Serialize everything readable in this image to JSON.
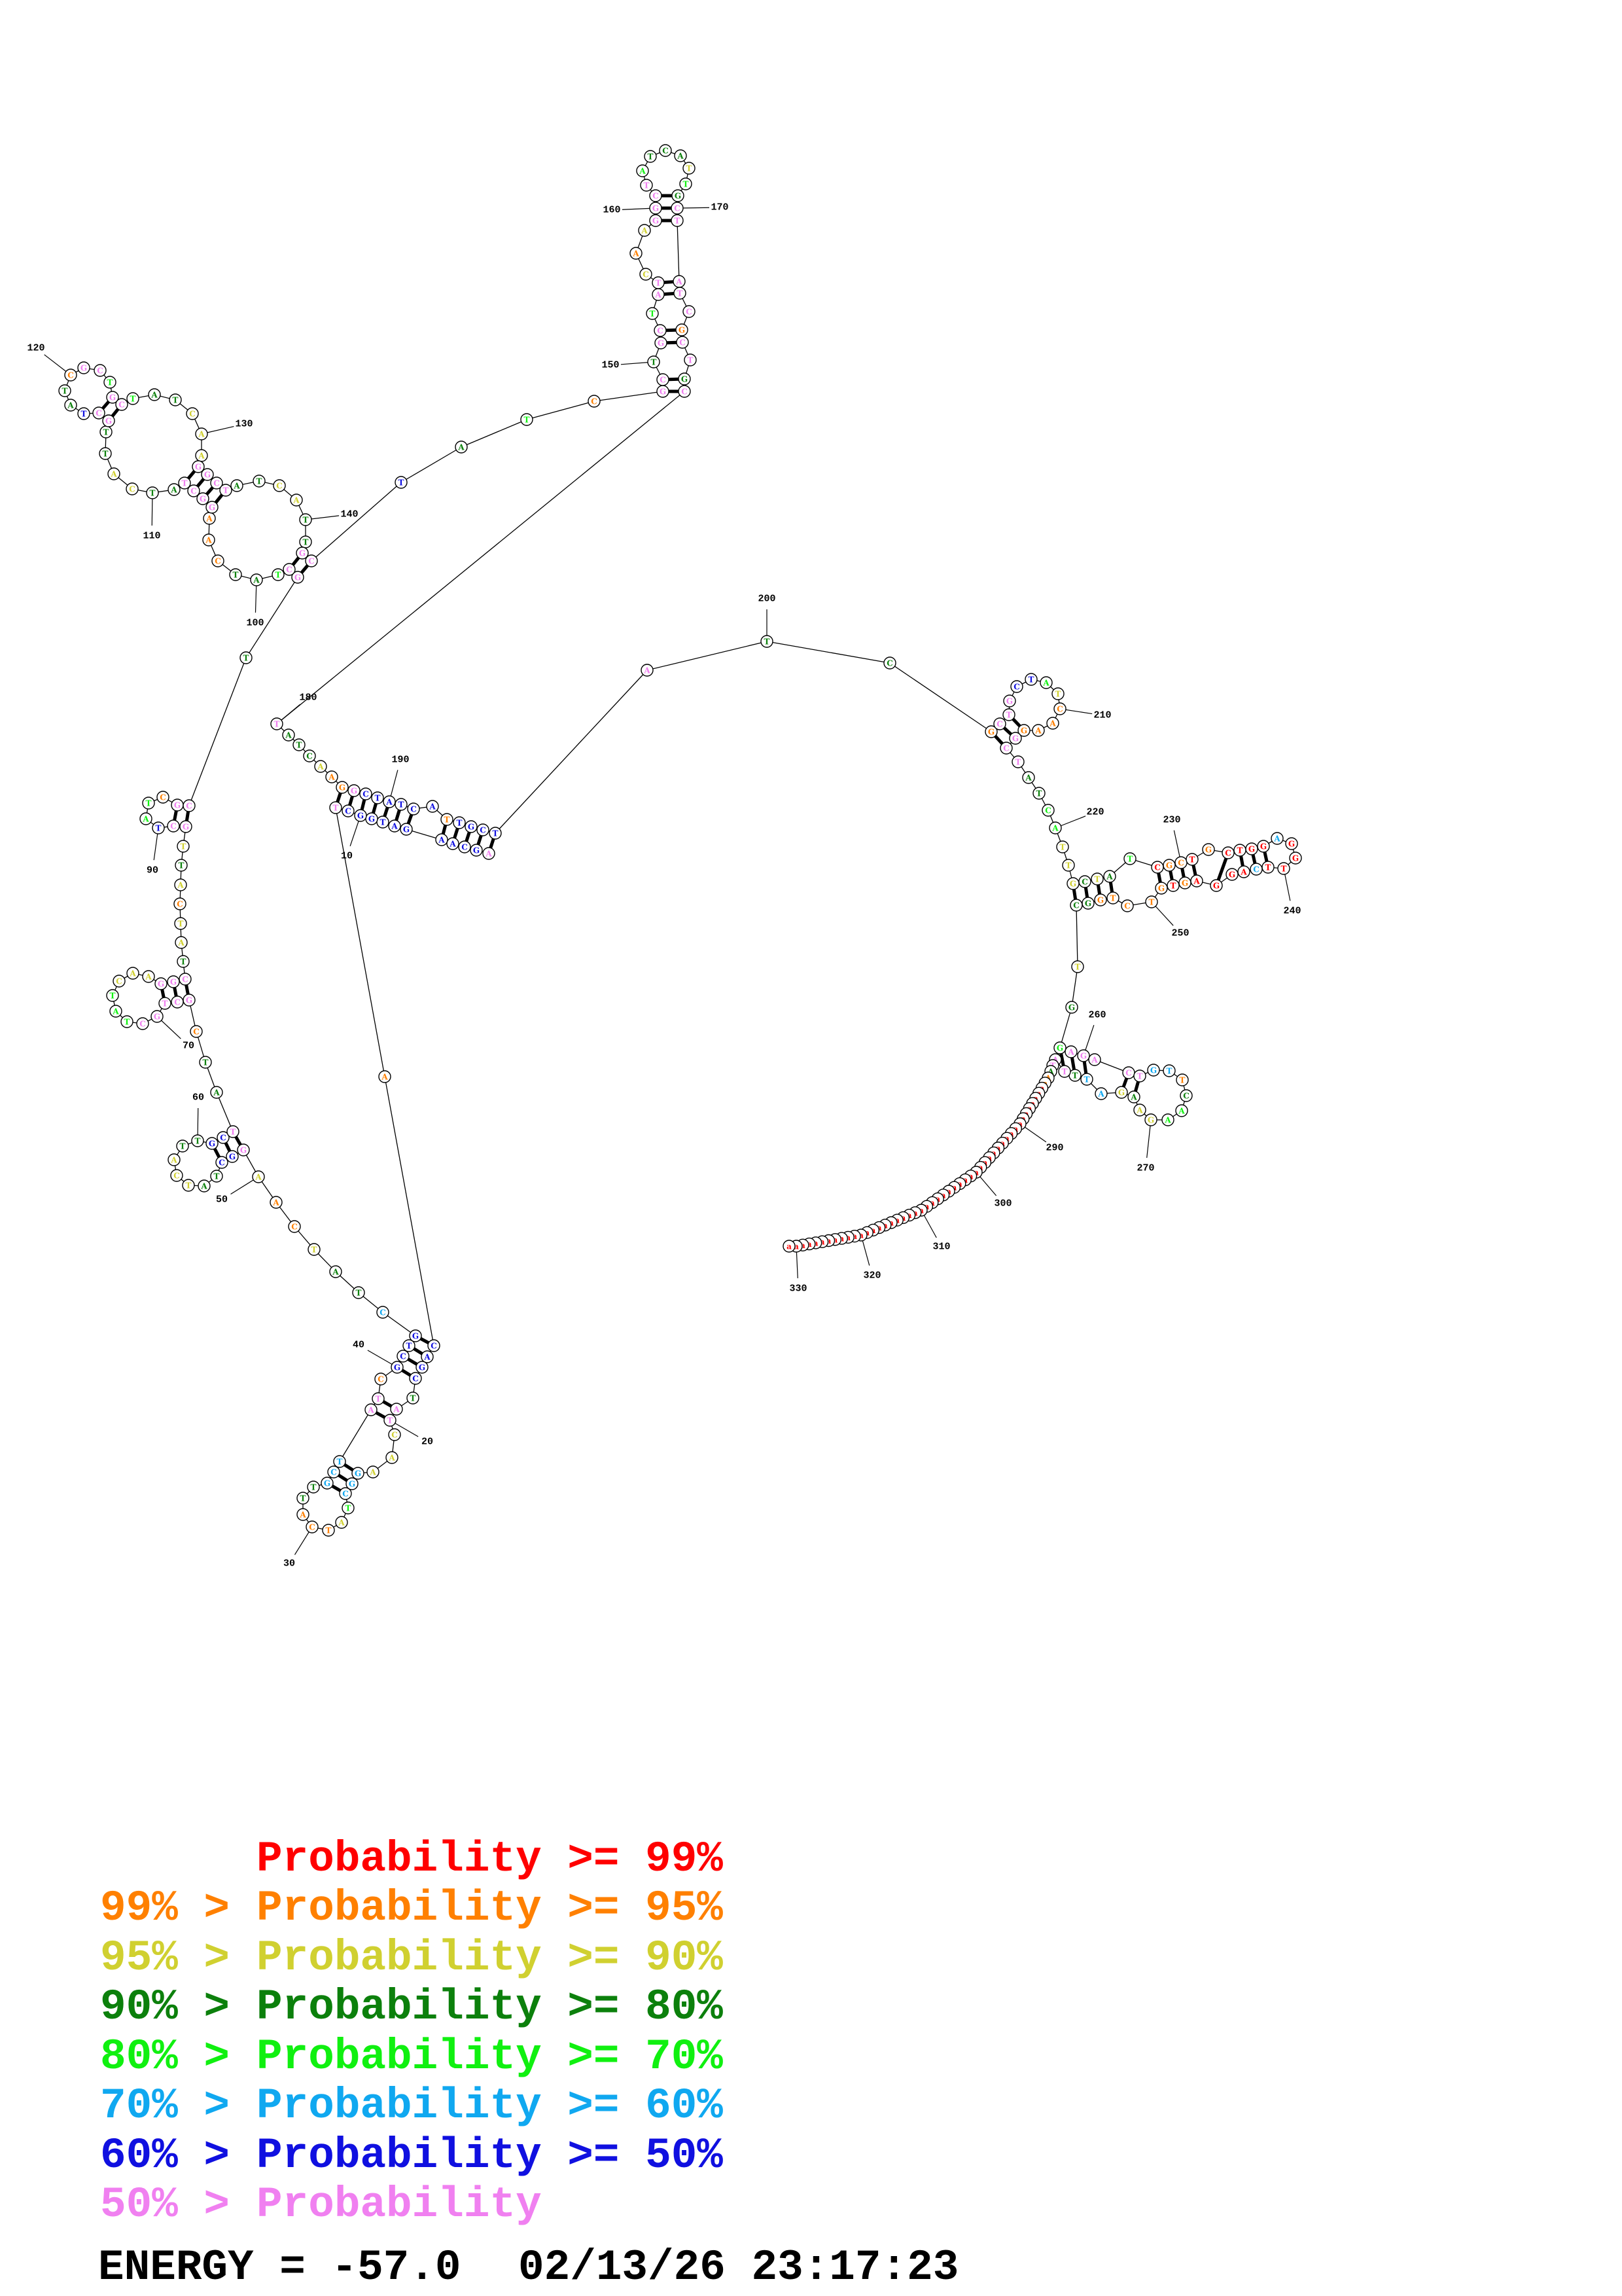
{
  "structure": {
    "sequence": "AGCAAGATGGCTACAGCTATCAAGGCTATCATTGCTATCGCTGCTATCAAGGCTATCATTGCTATCGCTGCTATCAAGGCTATCATTGCTATCGCTGCTATCAAGGCTATCATTGCTATCGCTGCTATCAAGGCTATCATTGCTATCGCTGCTATCAAGGCTATCATTGCTATCGCTGCTATCAAGGCTATCATTGCTATCGCTGCTATCAAGGCTATCATTGCTATCGCTGCTGGAGGTTCAGGAGTGTCTGGCTGGAGACTGTTCAAGAAGATTTATAAaaaaaaaaaaaaaaaaaaaaaaaaaaaaaaaaaaaaaaaaaaaaaaaaaa",
    "probability_classes": "pbbbbbbbbbbpobbbbgppyyyccclyoooggcccppobbbbcggyooypbbggyyyggbbpggoppppplllyyypppgyyoygyppblloppgpplggoooppppggyyggppbggopplpplggyyyppppggyyggppbgloppgpplppyoypppplgggylgpppppoppgppgggyoopbbbbbbobbbbpggopppbblyoooopppgglly yygyglroororrrrcrrrrcrrrroroooooggyglpppppccogllyygyccgpppgoorrrrrrrrrrrrrrrrrrrrrrrrrrrrrrrrrrrrrrrrrrrrrrrrrrrr",
    "class_colors": {
      "r": "#ff0000",
      "o": "#ff8000",
      "y": "#d0d030",
      "g": "#0c800c",
      "l": "#10f010",
      "c": "#10a8f0",
      "b": "#1010e0",
      "p": "#f080f0"
    },
    "pairs": [
      [
        1,
        198
      ],
      [
        2,
        197
      ],
      [
        3,
        196
      ],
      [
        4,
        195
      ],
      [
        5,
        194
      ],
      [
        6,
        192
      ],
      [
        7,
        191
      ],
      [
        8,
        190
      ],
      [
        9,
        189
      ],
      [
        10,
        188
      ],
      [
        11,
        187
      ],
      [
        12,
        186
      ],
      [
        14,
        43
      ],
      [
        15,
        42
      ],
      [
        16,
        41
      ],
      [
        17,
        40
      ],
      [
        19,
        38
      ],
      [
        20,
        37
      ],
      [
        24,
        36
      ],
      [
        25,
        35
      ],
      [
        26,
        34
      ],
      [
        51,
        63
      ],
      [
        52,
        62
      ],
      [
        53,
        61
      ],
      [
        67,
        80
      ],
      [
        68,
        79
      ],
      [
        69,
        78
      ],
      [
        88,
        95
      ],
      [
        89,
        94
      ],
      [
        97,
        143
      ],
      [
        98,
        142
      ],
      [
        105,
        135
      ],
      [
        106,
        134
      ],
      [
        107,
        133
      ],
      [
        108,
        132
      ],
      [
        115,
        125
      ],
      [
        116,
        124
      ],
      [
        148,
        179
      ],
      [
        149,
        178
      ],
      [
        151,
        176
      ],
      [
        152,
        175
      ],
      [
        154,
        173
      ],
      [
        155,
        172
      ],
      [
        159,
        171
      ],
      [
        160,
        170
      ],
      [
        161,
        169
      ],
      [
        202,
        215
      ],
      [
        203,
        214
      ],
      [
        204,
        213
      ],
      [
        223,
        255
      ],
      [
        224,
        254
      ],
      [
        225,
        253
      ],
      [
        226,
        252
      ],
      [
        228,
        249
      ],
      [
        229,
        248
      ],
      [
        230,
        247
      ],
      [
        231,
        246
      ],
      [
        233,
        245
      ],
      [
        234,
        243
      ],
      [
        235,
        242
      ],
      [
        236,
        241
      ],
      [
        258,
        277
      ],
      [
        259,
        276
      ],
      [
        260,
        275
      ],
      [
        262,
        273
      ],
      [
        263,
        272
      ]
    ],
    "position_labels": [
      "10",
      "20",
      "30",
      "40",
      "50",
      "60",
      "70",
      "90",
      "100",
      "110",
      "120",
      "130",
      "140",
      "150",
      "160",
      "170",
      "180",
      "190",
      "200",
      "210",
      "220",
      "230",
      "240",
      "250",
      "260",
      "270",
      "290",
      "300",
      "310",
      "320",
      "330"
    ]
  },
  "legend": {
    "rows": [
      {
        "prefix": "",
        "main": "Probability >= 99%",
        "color": "#ff0000"
      },
      {
        "prefix": "99% >",
        "main": "Probability >= 95%",
        "color": "#ff8000"
      },
      {
        "prefix": "95% >",
        "main": "Probability >= 90%",
        "color": "#d0d030"
      },
      {
        "prefix": "90% >",
        "main": "Probability >= 80%",
        "color": "#0c800c"
      },
      {
        "prefix": "80% >",
        "main": "Probability >= 70%",
        "color": "#10f010"
      },
      {
        "prefix": "70% >",
        "main": "Probability >= 60%",
        "color": "#10a8f0"
      },
      {
        "prefix": "60% >",
        "main": "Probability >= 50%",
        "color": "#1010e0"
      },
      {
        "prefix": "50% >",
        "main": "Probability",
        "color": "#f080f0"
      }
    ]
  },
  "footer": {
    "energy": "ENERGY = -57.0",
    "timestamp": "02/13/26 23:17:23"
  }
}
